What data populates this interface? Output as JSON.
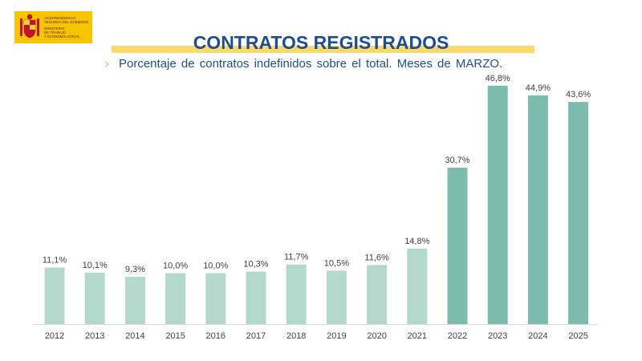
{
  "logo": {
    "line1": "VICEPRESIDENCIA",
    "line2": "SEGUNDA DEL GOBIERNO",
    "line3": "MINISTERIO",
    "line4": "DE TRABAJO",
    "line5": "Y ECONOMÍA SOCIAL"
  },
  "colors": {
    "bar_light": "#b3d8cc",
    "bar_dark": "#7cbcae",
    "title": "#1f4e8c",
    "title_band": "#fbd96a",
    "logo_bg": "#f7c400"
  },
  "chart_data": {
    "type": "bar",
    "title": "CONTRATOS REGISTRADOS",
    "subtitle": "Porcentaje de contratos indefinidos sobre el total. Meses de MARZO.",
    "xlabel": "",
    "ylabel": "",
    "ylim": [
      0,
      50
    ],
    "grid": false,
    "legend": "none",
    "categories": [
      "2012",
      "2013",
      "2014",
      "2015",
      "2016",
      "2017",
      "2018",
      "2019",
      "2020",
      "2021",
      "2022",
      "2023",
      "2024",
      "2025"
    ],
    "values": [
      11.1,
      10.1,
      9.3,
      10.0,
      10.0,
      10.3,
      11.7,
      10.5,
      11.6,
      14.8,
      30.7,
      46.8,
      44.9,
      43.6
    ],
    "labels": [
      "11,1%",
      "10,1%",
      "9,3%",
      "10,0%",
      "10,0%",
      "10,3%",
      "11,7%",
      "10,5%",
      "11,6%",
      "14,8%",
      "30,7%",
      "46,8%",
      "44,9%",
      "43,6%"
    ],
    "highlight_from_index": 10
  }
}
